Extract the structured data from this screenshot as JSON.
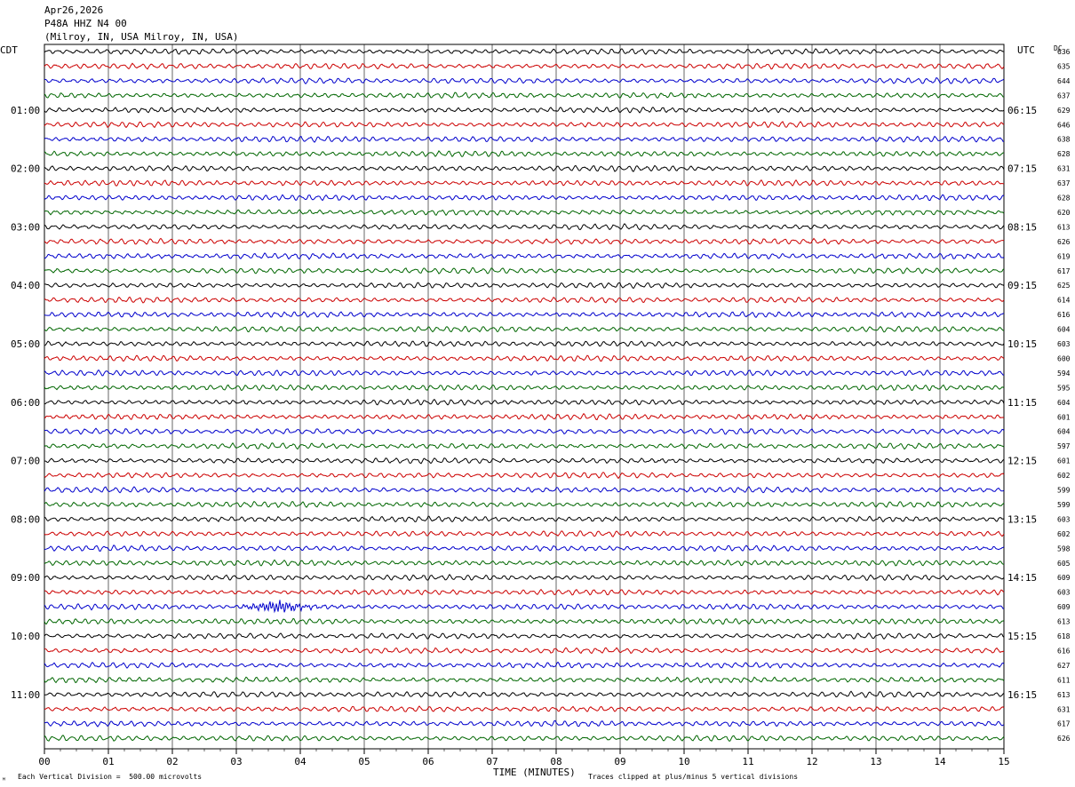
{
  "header": {
    "date": "Apr26,2026",
    "station": "P48A HHZ N4 00",
    "location": "(Milroy, IN, USA Milroy, IN, USA)"
  },
  "left_timezone": "CDT",
  "right_timezone": "UTC",
  "dc_label": "DC",
  "footer": {
    "scale_note": "Each Vertical Division =  500.00 microvolts",
    "clip_note": "Traces clipped at plus/minus 5 vertical divisions",
    "corner_mark": "ᴹ"
  },
  "chart_data": {
    "type": "line",
    "xlabel": "TIME (MINUTES)",
    "x_ticks": [
      "00",
      "01",
      "02",
      "03",
      "04",
      "05",
      "06",
      "07",
      "08",
      "09",
      "10",
      "11",
      "12",
      "13",
      "14",
      "15"
    ],
    "xlim": [
      0,
      15
    ],
    "trace_colors": [
      "#000000",
      "#cc0000",
      "#0000cc",
      "#006600"
    ],
    "left_hour_labels": [
      "01:00",
      "02:00",
      "03:00",
      "04:00",
      "05:00",
      "06:00",
      "07:00",
      "08:00",
      "09:00",
      "10:00",
      "11:00"
    ],
    "right_hour_labels": [
      "06:15",
      "07:15",
      "08:15",
      "09:15",
      "10:15",
      "11:15",
      "12:15",
      "13:15",
      "14:15",
      "15:15",
      "16:15"
    ],
    "dc_offsets": [
      "636",
      "635",
      "644",
      "637",
      "629",
      "646",
      "638",
      "628",
      "631",
      "637",
      "628",
      "620",
      "613",
      "626",
      "619",
      "617",
      "625",
      "614",
      "616",
      "604",
      "603",
      "600",
      "594",
      "595",
      "604",
      "601",
      "604",
      "597",
      "601",
      "602",
      "599",
      "599",
      "603",
      "602",
      "598",
      "605",
      "609",
      "603",
      "609",
      "613",
      "618",
      "616",
      "627",
      "611",
      "613",
      "631",
      "617",
      "626"
    ],
    "events": [
      {
        "trace_index": 38,
        "start_min": 3.0,
        "peak_min": 3.7,
        "end_min": 5.0
      }
    ]
  }
}
